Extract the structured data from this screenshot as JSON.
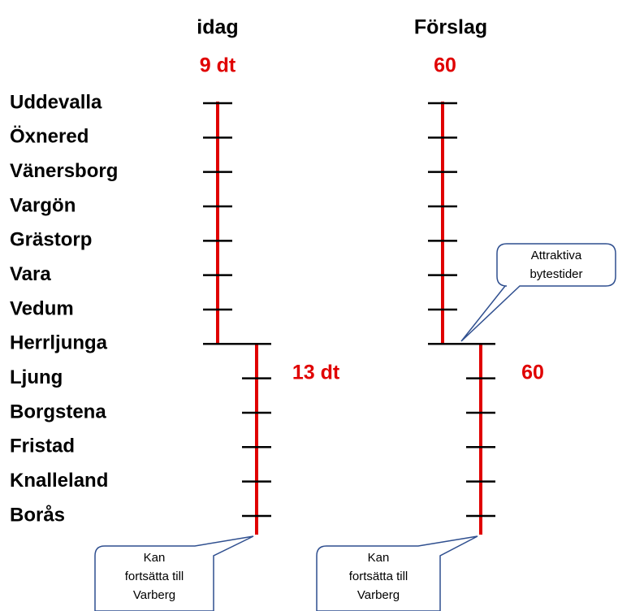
{
  "headers": [
    "idag",
    "Förslag"
  ],
  "frequencies": {
    "idag_upper": "9 dt",
    "idag_lower": "13 dt",
    "forslag_upper": "60",
    "forslag_lower": "60"
  },
  "stations": [
    "Uddevalla",
    "Öxnered",
    "Vänersborg",
    "Vargön",
    "Grästorp",
    "Vara",
    "Vedum",
    "Herrljunga",
    "Ljung",
    "Borgstena",
    "Fristad",
    "Knalleland",
    "Borås"
  ],
  "callouts": {
    "transfer": [
      "Attraktiva",
      "bytestider"
    ],
    "continue_left": [
      "Kan",
      "fortsätta till",
      "Varberg"
    ],
    "continue_right": [
      "Kan",
      "fortsätta till",
      "Varberg"
    ]
  }
}
